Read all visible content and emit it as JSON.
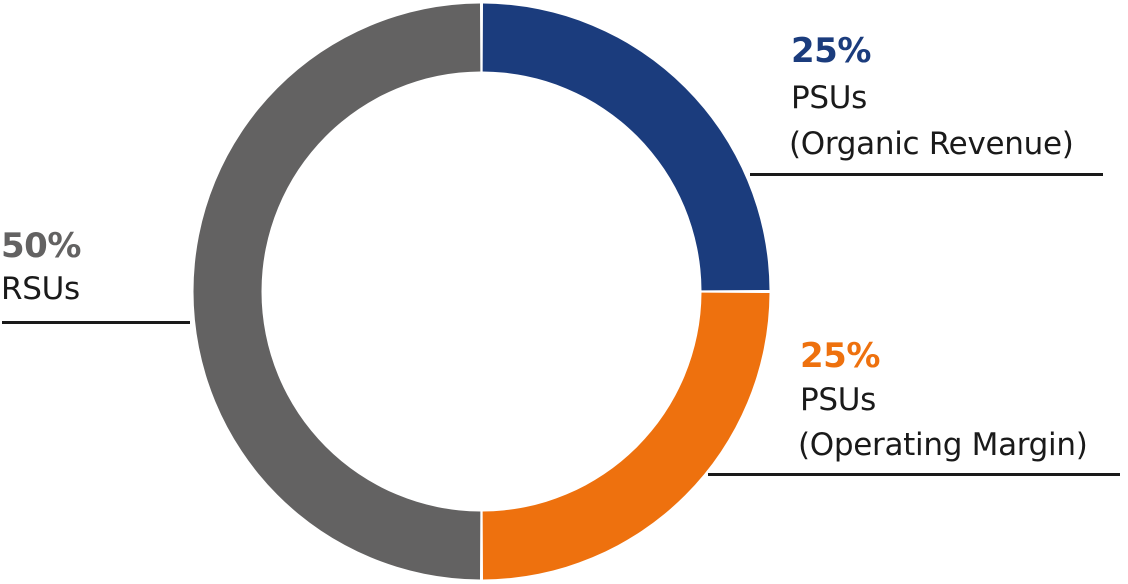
{
  "chart_data": {
    "type": "pie",
    "subtype": "donut",
    "title": "",
    "categories": [
      "PSUs (Organic Revenue)",
      "PSUs (Operating Margin)",
      "RSUs"
    ],
    "values": [
      25,
      25,
      50
    ],
    "unit": "%",
    "colors": [
      "#1B3C7D",
      "#EE710E",
      "#636262"
    ],
    "labels": [
      {
        "percent": "25%",
        "line1": "PSUs",
        "line2": "(Organic Revenue)",
        "color": "#1B3C7D"
      },
      {
        "percent": "25%",
        "line1": "PSUs",
        "line2": "(Operating Margin)",
        "color": "#EE710E"
      },
      {
        "percent": "50%",
        "line1": "RSUs",
        "line2": "",
        "color": "#636262"
      }
    ],
    "legend": "none (direct labels with leader lines)"
  }
}
